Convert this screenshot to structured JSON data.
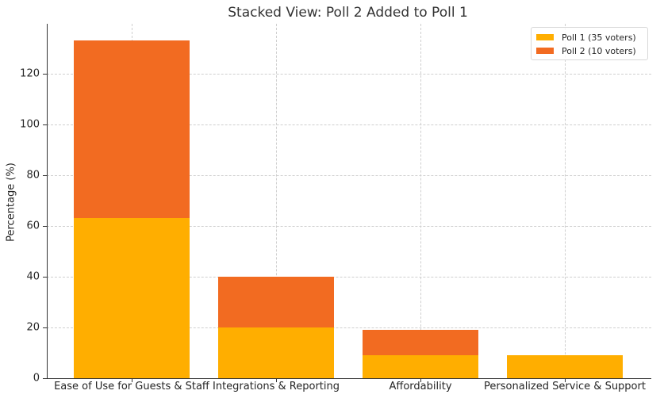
{
  "chart_data": {
    "type": "bar",
    "stacked": true,
    "title": "Stacked View: Poll 2 Added to Poll 1",
    "xlabel": "",
    "ylabel": "Percentage (%)",
    "ylim": [
      0,
      139.7
    ],
    "yticks": [
      0,
      20,
      40,
      60,
      80,
      100,
      120
    ],
    "grid": true,
    "legend_position": "upper right",
    "categories": [
      "Ease of Use for Guests & Staff",
      "Integrations & Reporting",
      "Affordability",
      "Personalized Service & Support"
    ],
    "series": [
      {
        "name": "Poll 1 (35 voters)",
        "color": "#ffae00",
        "values": [
          63,
          20,
          9,
          9
        ]
      },
      {
        "name": "Poll 2 (10 voters)",
        "color": "#f26b21",
        "values": [
          70,
          20,
          10,
          0
        ]
      }
    ]
  }
}
